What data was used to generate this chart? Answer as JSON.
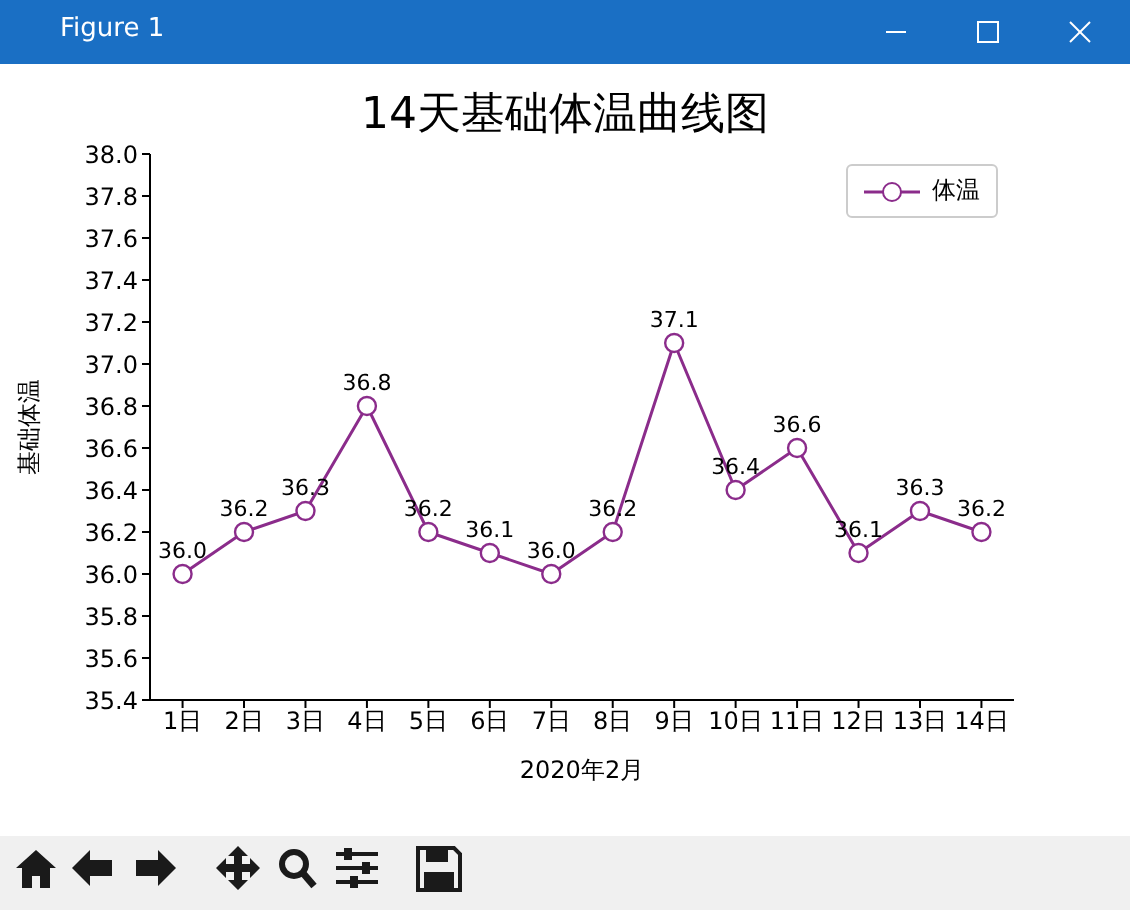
{
  "chart_data": {
    "type": "line",
    "title": "14天基础体温曲线图",
    "xlabel": "2020年2月",
    "ylabel": "基础体温",
    "annotations": [
      "Figure 1"
    ],
    "categories": [
      "1日",
      "2日",
      "3日",
      "4日",
      "5日",
      "6日",
      "7日",
      "8日",
      "9日",
      "10日",
      "11日",
      "12日",
      "13日",
      "14日"
    ],
    "series": [
      {
        "name": "体温",
        "color": "#8b2c8b",
        "values": [
          36.0,
          36.2,
          36.3,
          36.8,
          36.2,
          36.1,
          36.0,
          36.2,
          37.1,
          36.4,
          36.6,
          36.1,
          36.3,
          36.2
        ],
        "value_labels": [
          "36.0",
          "36.2",
          "36.3",
          "36.8",
          "36.2",
          "36.1",
          "36.0",
          "36.2",
          "37.1",
          "36.4",
          "36.6",
          "36.1",
          "36.3",
          "36.2"
        ]
      }
    ],
    "ylim": [
      35.4,
      38.0
    ],
    "yticks": [
      35.4,
      35.6,
      35.8,
      {
        "value": 36.0,
        "label": "36.0"
      },
      36.2,
      36.4,
      36.6,
      36.8,
      {
        "value": 37.0,
        "label": "37.0"
      },
      37.2,
      37.4,
      37.6,
      37.8,
      {
        "value": 38.0,
        "label": "38.0"
      }
    ],
    "grid": false,
    "legend": "top right",
    "marker": "circle",
    "line_style": "solid"
  }
}
